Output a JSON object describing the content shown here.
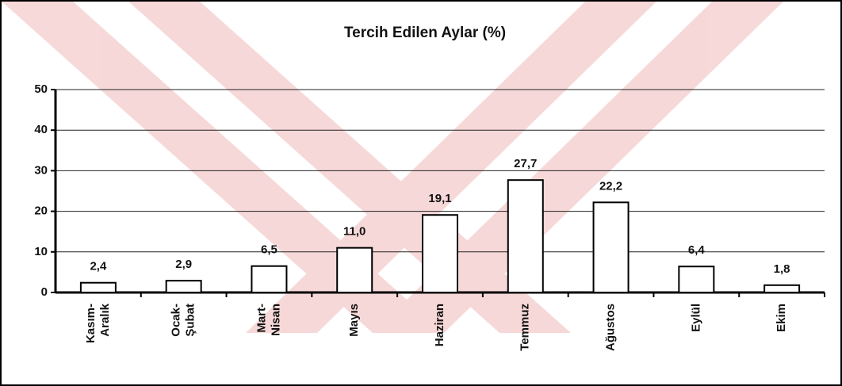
{
  "chart_data": {
    "type": "bar",
    "title": "Tercih Edilen Aylar (%)",
    "categories": [
      "Kasım-Aralık",
      "Ocak-Şubat",
      "Mart-Nisan",
      "Mayıs",
      "Haziran",
      "Temmuz",
      "Ağustos",
      "Eylül",
      "Ekim"
    ],
    "values": [
      2.4,
      2.9,
      6.5,
      11.0,
      19.1,
      27.7,
      22.2,
      6.4,
      1.8
    ],
    "value_labels": [
      "2,4",
      "2,9",
      "6,5",
      "11,0",
      "19,1",
      "27,7",
      "22,2",
      "6,4",
      "1,8"
    ],
    "color": "#ffffff",
    "ylim": [
      0,
      50
    ],
    "yticks": [
      0,
      10,
      20,
      30,
      40,
      50
    ],
    "grid": true
  }
}
